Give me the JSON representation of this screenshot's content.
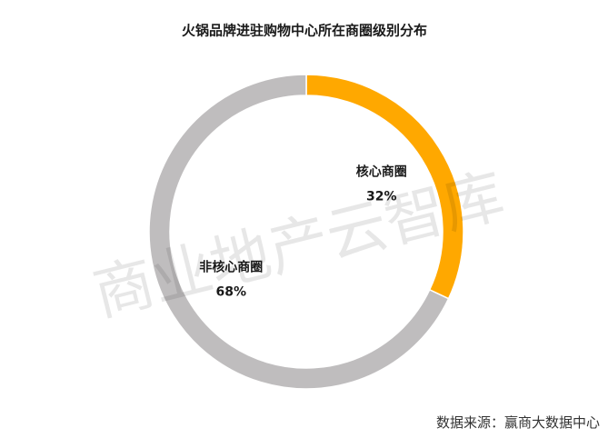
{
  "chart_data": {
    "type": "donut",
    "title": "火锅品牌进驻购物中心所在商圈级别分布",
    "categories": [
      "核心商圈",
      "非核心商圈"
    ],
    "values": [
      32,
      68
    ],
    "value_labels": [
      "32%",
      "68%"
    ],
    "colors": [
      "#FFA800",
      "#BFBDBE"
    ],
    "watermark": "商业地产云智库",
    "source": "数据来源：赢商大数据中心"
  }
}
